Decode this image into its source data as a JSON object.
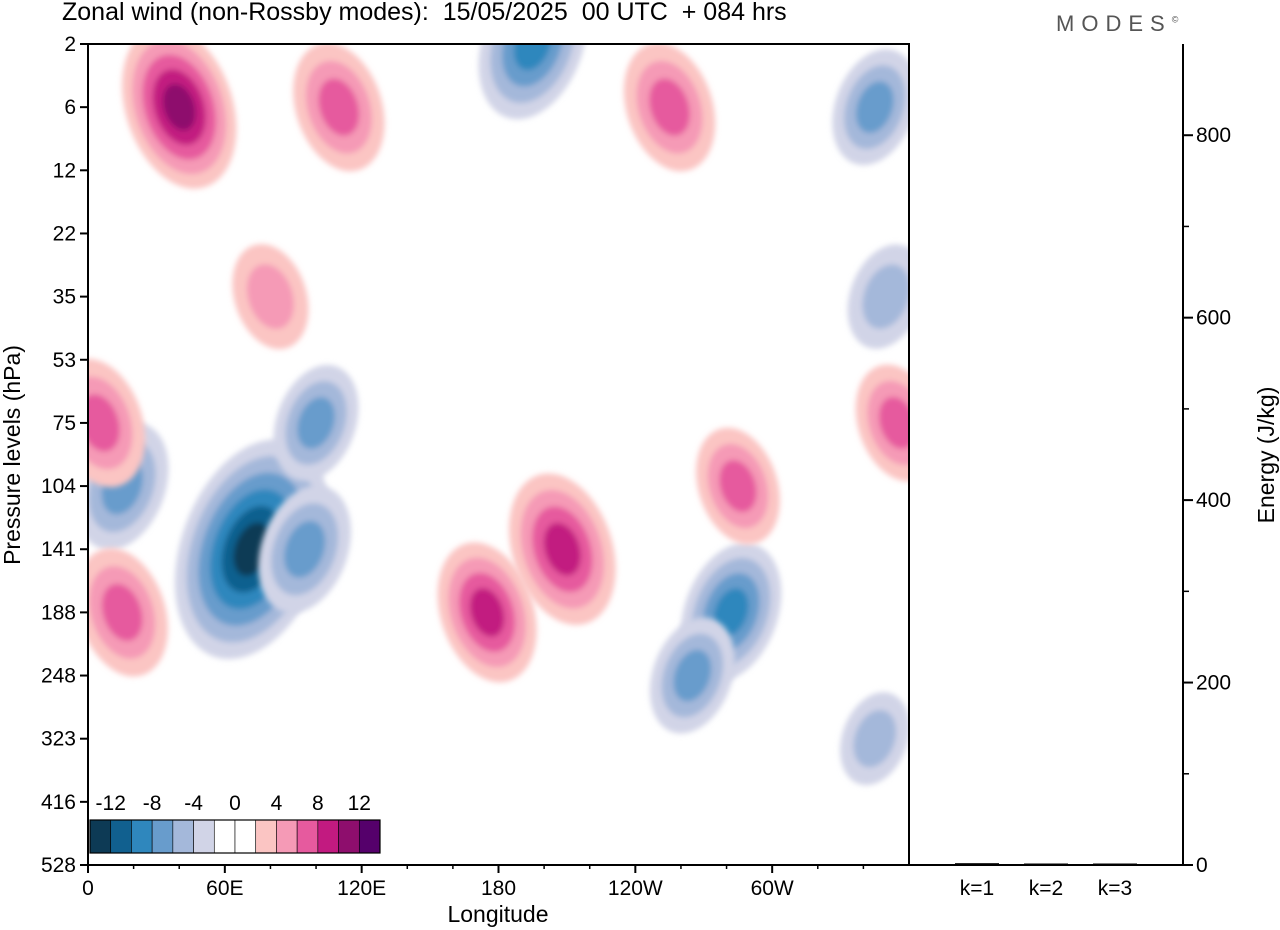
{
  "header": {
    "title": "Zonal wind (non-Rossby modes):  15/05/2025  00 UTC  + 084 hrs",
    "brand": "MODES",
    "brand_mark": "©"
  },
  "chart_data": [
    {
      "type": "heatmap",
      "xlabel": "Longitude",
      "ylabel": "Pressure levels (hPa)",
      "x_tick_labels": [
        "0",
        "60E",
        "120E",
        "180",
        "120W",
        "60W"
      ],
      "y_tick_labels": [
        "2",
        "6",
        "12",
        "22",
        "35",
        "53",
        "75",
        "104",
        "141",
        "188",
        "248",
        "323",
        "416",
        "528"
      ],
      "colorbar": {
        "labels": [
          "-12",
          "-8",
          "-4",
          "0",
          "4",
          "8",
          "12"
        ],
        "colors": [
          "#0d3a55",
          "#11608f",
          "#2f87bd",
          "#689ccc",
          "#a4b8da",
          "#d1d4e7",
          "#ffffff",
          "#ffffff",
          "#fbc5c3",
          "#f59ab6",
          "#e65a9e",
          "#c21a80",
          "#8e0e6d",
          "#55006b"
        ]
      },
      "features": [
        {
          "kind": "negative",
          "lon": 72,
          "level": "141",
          "strength": -14
        },
        {
          "kind": "negative",
          "lon": 95,
          "level": "141",
          "strength": -6
        },
        {
          "kind": "negative",
          "lon": 15,
          "level": "104",
          "strength": -6
        },
        {
          "kind": "negative",
          "lon": 100,
          "level": "75",
          "strength": -5
        },
        {
          "kind": "negative",
          "lon": 195,
          "level": "2",
          "strength": -8
        },
        {
          "kind": "negative",
          "lon": 282,
          "level": "188",
          "strength": -7
        },
        {
          "kind": "negative",
          "lon": 265,
          "level": "248",
          "strength": -5
        },
        {
          "kind": "negative",
          "lon": 345,
          "level": "6",
          "strength": -5
        },
        {
          "kind": "negative",
          "lon": 350,
          "level": "35",
          "strength": -4
        },
        {
          "kind": "negative",
          "lon": 345,
          "level": "323",
          "strength": -3
        },
        {
          "kind": "positive",
          "lon": 40,
          "level": "6",
          "strength": 9
        },
        {
          "kind": "positive",
          "lon": 110,
          "level": "6",
          "strength": 6
        },
        {
          "kind": "positive",
          "lon": 175,
          "level": "188",
          "strength": 7
        },
        {
          "kind": "positive",
          "lon": 208,
          "level": "141",
          "strength": 8
        },
        {
          "kind": "positive",
          "lon": 15,
          "level": "188",
          "strength": 6
        },
        {
          "kind": "positive",
          "lon": 5,
          "level": "75",
          "strength": 6
        },
        {
          "kind": "positive",
          "lon": 285,
          "level": "104",
          "strength": 5
        },
        {
          "kind": "positive",
          "lon": 355,
          "level": "75",
          "strength": 5
        },
        {
          "kind": "positive",
          "lon": 255,
          "level": "6",
          "strength": 6
        },
        {
          "kind": "positive",
          "lon": 80,
          "level": "35",
          "strength": 4
        }
      ]
    },
    {
      "type": "bar",
      "ylabel": "Energy (J/kg)",
      "categories": [
        "k=1",
        "k=2",
        "k=3"
      ],
      "values": [
        2,
        1.5,
        0.8
      ],
      "ylim": [
        0,
        900
      ],
      "y_tick_labels": [
        "0",
        "200",
        "400",
        "600",
        "800"
      ]
    }
  ]
}
